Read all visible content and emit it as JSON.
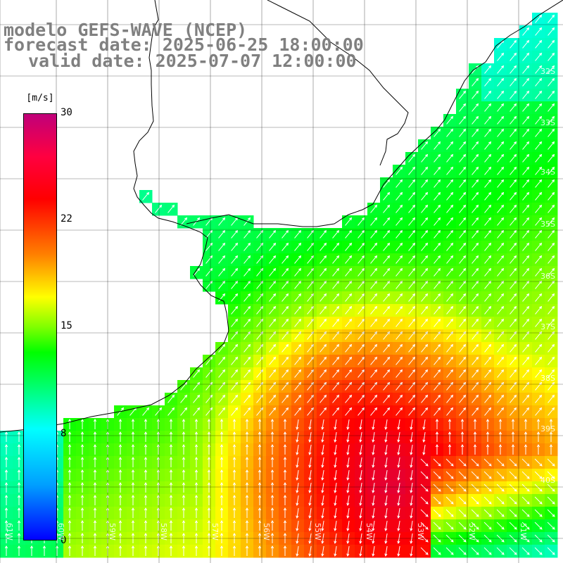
{
  "title": {
    "line1": "modelo GEFS-WAVE (NCEP)",
    "line2": "forecast date: 2025-06-25 18:00:00",
    "line3": "valid date: 2025-07-07 12:00:00"
  },
  "colorbar": {
    "units": "[m/s]",
    "ticks": [
      {
        "value": 30,
        "label": "30"
      },
      {
        "value": 22,
        "label": "22"
      },
      {
        "value": 15,
        "label": "15"
      },
      {
        "value": 8,
        "label": "8"
      },
      {
        "value": 0,
        "label": "0"
      }
    ],
    "colors": [
      "#0000ff",
      "#00a0ff",
      "#00ffff",
      "#00ff60",
      "#00ff00",
      "#80ff00",
      "#ffff00",
      "#ff8000",
      "#ff0000",
      "#ff0040",
      "#c0007a"
    ]
  },
  "graticule": {
    "lat_labels": [
      "32S",
      "33S",
      "34S",
      "35S",
      "36S",
      "37S",
      "38S",
      "39S",
      "40S"
    ],
    "lon_labels": [
      "61W",
      "60W",
      "59W",
      "58W",
      "57W",
      "56W",
      "55W",
      "54W",
      "53W",
      "52W",
      "51W"
    ]
  },
  "palette": {
    "land": "#ffffff",
    "coast": "#000000",
    "grid": "#000000",
    "arrow": "#ffffff",
    "title": "#808080"
  }
}
